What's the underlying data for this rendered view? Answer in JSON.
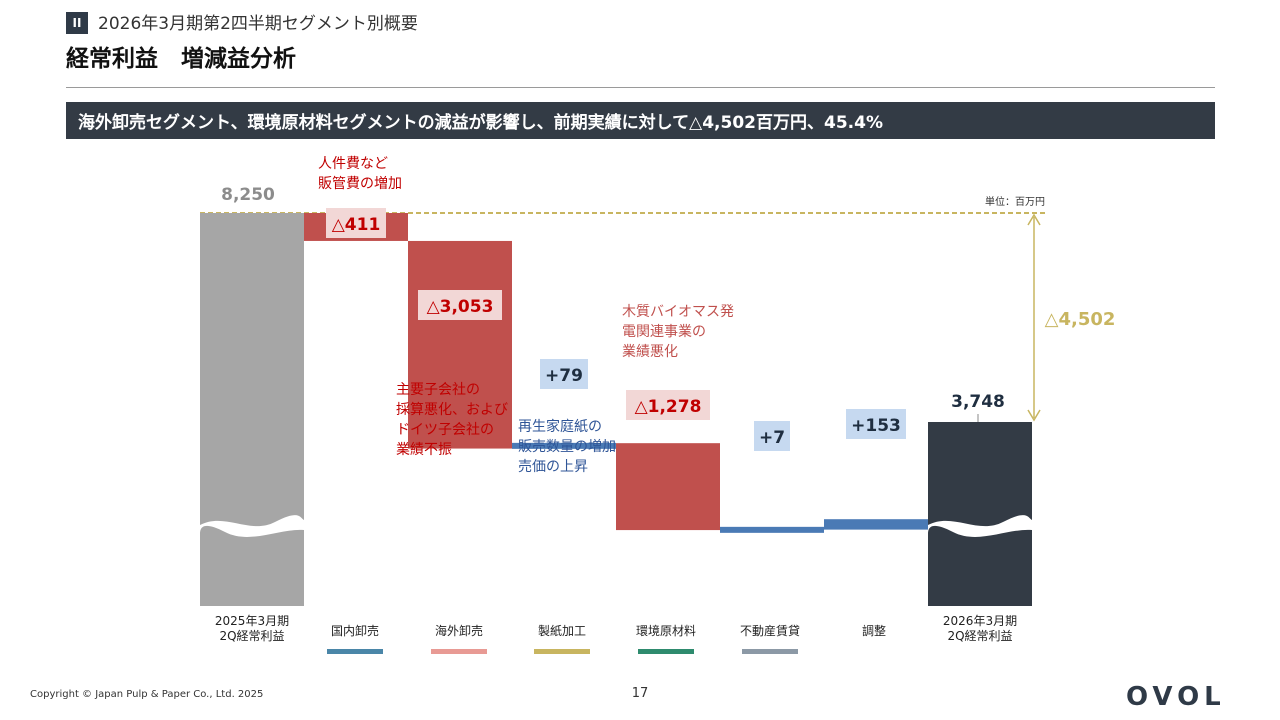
{
  "header": {
    "section_badge": "II",
    "section_title": "2026年3月期第2四半期セグメント別概要",
    "page_title": "経常利益　増減益分析",
    "banner": "海外卸売セグメント、環境原材料セグメントの減益が影響し、前期実績に対して△4,502百万円、45.4%"
  },
  "chart_data": {
    "type": "waterfall",
    "unit_label": "単位：百万円",
    "start": {
      "label": "2025年3月期\n2Q経常利益",
      "value": 8250,
      "value_label": "8,250",
      "color": "#a6a6a6"
    },
    "end": {
      "label": "2026年3月期\n2Q経常利益",
      "value": 3748,
      "value_label": "3,748",
      "color": "#333b45"
    },
    "steps": [
      {
        "label": "",
        "delta": -411,
        "value_label": "△411",
        "color": "#c0504d",
        "label_bg": "#f2d7d6",
        "label_color": "#c00000",
        "annotation": "人件費など\n販管費の増加",
        "annotation_color": "#c00000"
      },
      {
        "label": "",
        "delta": -3053,
        "value_label": "△3,053",
        "color": "#c0504d",
        "label_bg": "#f2d7d6",
        "label_color": "#c00000",
        "annotation": "主要子会社の\n採算悪化、および\nドイツ子会社の\n業績不振",
        "annotation_color": "#c00000"
      },
      {
        "label": "",
        "delta": 79,
        "value_label": "+79",
        "color": "#4a7ab5",
        "label_bg": "#c6d9f0",
        "label_color": "#1f2e40",
        "annotation": "再生家庭紙の\n販売数量の増加、\n売価の上昇",
        "annotation_color": "#2f5597"
      },
      {
        "label": "",
        "delta": -1278,
        "value_label": "△1,278",
        "color": "#c0504d",
        "label_bg": "#f2d7d6",
        "label_color": "#c00000",
        "annotation": "木質バイオマス発\n電関連事業の\n業績悪化",
        "annotation_color": "#c0504d"
      },
      {
        "label": "",
        "delta": 7,
        "value_label": "+7",
        "color": "#4a7ab5",
        "label_bg": "#c6d9f0",
        "label_color": "#1f2e40",
        "annotation": "",
        "annotation_color": ""
      },
      {
        "label": "",
        "delta": 153,
        "value_label": "+153",
        "color": "#4a7ab5",
        "label_bg": "#c6d9f0",
        "label_color": "#1f2e40",
        "annotation": "",
        "annotation_color": ""
      }
    ],
    "difference": {
      "value": -4502,
      "label": "△4,502",
      "color": "#c8b560"
    },
    "legend": [
      {
        "label": "国内卸売",
        "color": "#4a86a8"
      },
      {
        "label": "海外卸売",
        "color": "#e89a94"
      },
      {
        "label": "製紙加工",
        "color": "#c8b560"
      },
      {
        "label": "環境原材料",
        "color": "#2e8b6e"
      },
      {
        "label": "不動産賃貸",
        "color": "#8c99a6"
      },
      {
        "label": "調整",
        "color": ""
      }
    ]
  },
  "footer": {
    "copyright": "Copyright © Japan Pulp & Paper Co., Ltd. 2025",
    "page_number": "17",
    "logo": "OVOL"
  }
}
